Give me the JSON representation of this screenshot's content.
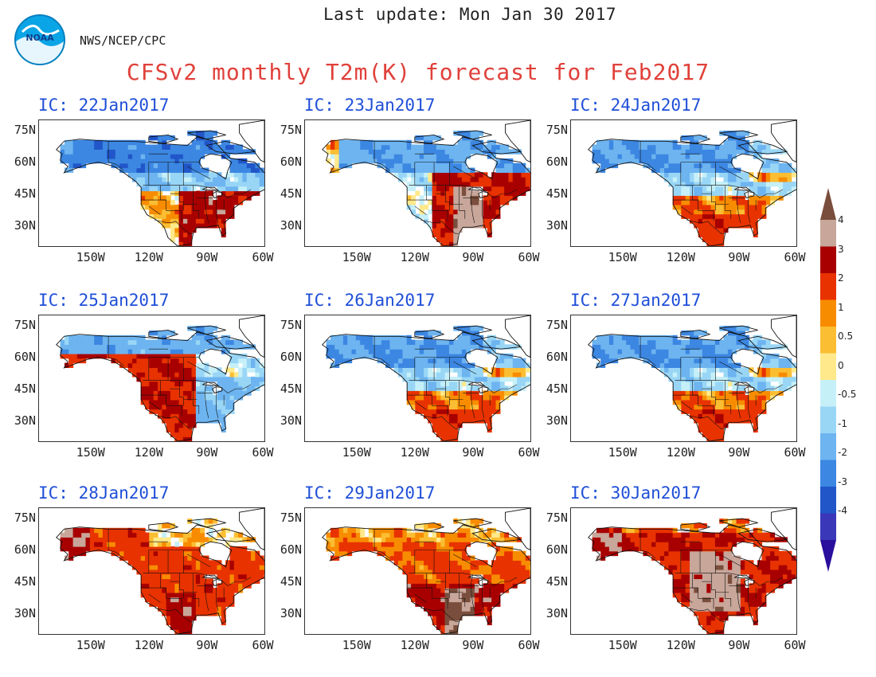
{
  "header": {
    "last_update": "Last update: Mon Jan 30 2017",
    "org": "NWS/NCEP/CPC",
    "title": "CFSv2 monthly T2m(K) forecast for Feb2017",
    "logo_text": "NOAA"
  },
  "axes": {
    "lat_ticks": [
      "75N",
      "60N",
      "45N",
      "30N"
    ],
    "lon_ticks": [
      "150W",
      "120W",
      "90W",
      "60W"
    ]
  },
  "panels": [
    {
      "label": "IC: 22Jan2017",
      "regime": "cold-north-warm-southeast"
    },
    {
      "label": "IC: 23Jan2017",
      "regime": "cold-north-hot-central"
    },
    {
      "label": "IC: 24Jan2017",
      "regime": "cold-north-mild-south"
    },
    {
      "label": "IC: 25Jan2017",
      "regime": "warm-west-cool-east"
    },
    {
      "label": "IC: 26Jan2017",
      "regime": "cold-north-mild-south"
    },
    {
      "label": "IC: 27Jan2017",
      "regime": "cold-north-mild-south"
    },
    {
      "label": "IC: 28Jan2017",
      "regime": "warm-widespread"
    },
    {
      "label": "IC: 29Jan2017",
      "regime": "hot-south-central"
    },
    {
      "label": "IC: 30Jan2017",
      "regime": "hot-widespread"
    }
  ],
  "colorbar": {
    "labels": [
      "4",
      "3",
      "2",
      "1",
      "0.5",
      "0",
      "-0.5",
      "-1",
      "-2",
      "-3",
      "-4"
    ],
    "colors": [
      "#7a4e3c",
      "#c8a69a",
      "#a80000",
      "#e83200",
      "#f88c00",
      "#fbbe33",
      "#ffe98a",
      "#c6f0f8",
      "#99d6f6",
      "#6db4f0",
      "#3c87e2",
      "#2156c9",
      "#3a37b8",
      "#2a0e9c"
    ]
  }
}
